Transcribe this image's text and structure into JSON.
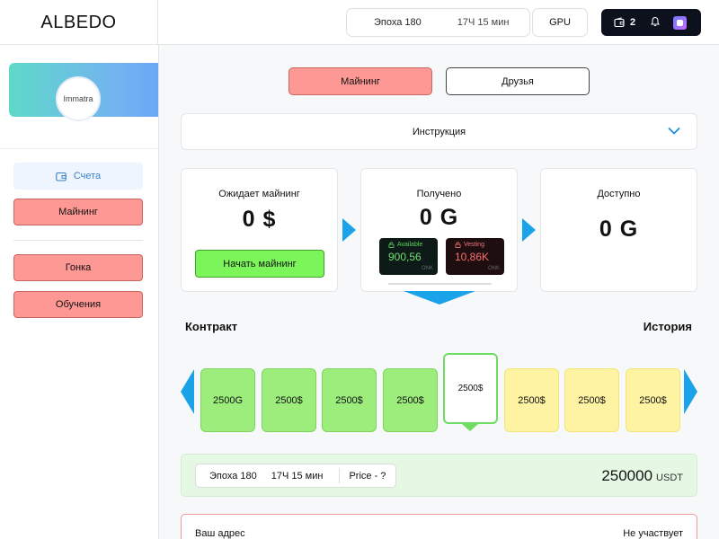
{
  "header": {
    "logo": "ALBEDO",
    "epoch_label": "Эпоха 180",
    "epoch_time": "17Ч 15 мин",
    "gpu_label": "GPU",
    "wallet_count": "2",
    "icons": [
      "wallet-icon",
      "bell-icon",
      "app-icon"
    ]
  },
  "sidebar": {
    "avatar_name": "Immatra",
    "accounts_label": "Счета",
    "items": [
      {
        "label": "Майнинг"
      },
      {
        "label": "Гонка"
      },
      {
        "label": "Обучения"
      }
    ]
  },
  "main": {
    "tabs": [
      {
        "label": "Майнинг",
        "active": true
      },
      {
        "label": "Друзья",
        "active": false
      }
    ],
    "instruction_label": "Инструкция",
    "cards": {
      "awaiting": {
        "title": "Ожидает майнинг",
        "value": "0 $",
        "button": "Начать майнинг"
      },
      "received": {
        "title": "Получено",
        "value": "0 G",
        "available": {
          "label": "Available",
          "value": "900,56",
          "unit": "ONK"
        },
        "vesting": {
          "label": "Vesting",
          "value": "10,86K",
          "unit": "ONK"
        }
      },
      "available": {
        "title": "Доступно",
        "value": "0 G"
      }
    },
    "contract_title": "Контракт",
    "history_title": "История",
    "contracts": [
      {
        "label": "2500G",
        "status": "green"
      },
      {
        "label": "2500$",
        "status": "green"
      },
      {
        "label": "2500$",
        "status": "green"
      },
      {
        "label": "2500$",
        "status": "green"
      },
      {
        "label": "2500$",
        "status": "selected"
      },
      {
        "label": "2500$",
        "status": "yellow"
      },
      {
        "label": "2500$",
        "status": "yellow"
      },
      {
        "label": "2500$",
        "status": "yellow"
      }
    ],
    "epoch_panel": {
      "epoch": "Эпоха 180",
      "time": "17Ч 15 мин",
      "price": "Price - ?",
      "amount": "250000",
      "currency": "USDT"
    },
    "address_panel": {
      "label": "Ваш адрес",
      "status": "Не участвует"
    }
  },
  "colors": {
    "accent_blue": "#1aa3e8",
    "mining_red": "#fe9894",
    "start_green": "#7cf55a",
    "contract_green": "#9ced7c",
    "contract_yellow": "#fdf3a2",
    "dark": "#0c111d"
  }
}
